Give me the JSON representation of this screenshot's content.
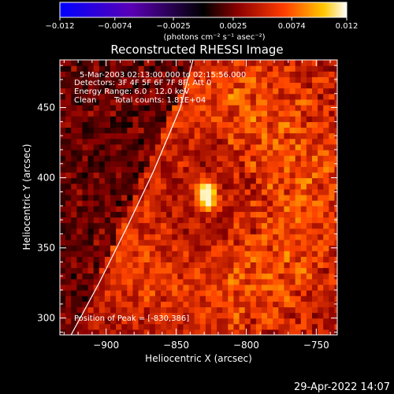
{
  "chart_data": {
    "type": "heatmap",
    "title": "Reconstructed RHESSI Image",
    "xlabel": "Heliocentric X (arcsec)",
    "ylabel": "Heliocentric Y (arcsec)",
    "xlim": [
      -933,
      -735
    ],
    "ylim": [
      288,
      484
    ],
    "xticks": [
      -900,
      -850,
      -800,
      -750
    ],
    "xtick_labels": [
      "−900",
      "−850",
      "−800",
      "−750"
    ],
    "yticks": [
      300,
      350,
      400,
      450
    ],
    "ytick_labels": [
      "300",
      "350",
      "400",
      "450"
    ],
    "colorbar": {
      "min": -0.012,
      "max": 0.012,
      "ticks": [
        -0.012,
        -0.0074,
        -0.0025,
        0.0025,
        0.0074,
        0.012
      ],
      "tick_labels": [
        "−0.012",
        "−0.0074",
        "−0.0025",
        "0.0025",
        "0.0074",
        "0.012"
      ],
      "units_label": "(photons cm⁻² s⁻¹ asec⁻²)",
      "colors": [
        "#0000ff",
        "#6a00c8",
        "#000000",
        "#8b0000",
        "#ff4500",
        "#ffd000",
        "#ffffff"
      ]
    },
    "annotations": {
      "time_range": "5-Mar-2003 02:13:00.000 to 02:15:56.000",
      "detectors": "Detectors: 3F 4F 5F 6F 7F 8F, Att 0",
      "energy": "Energy Range: 6.0 - 12.0 keV",
      "method": "Clean",
      "counts": "Total counts: 1.81E+04",
      "peak": "Position of Peak = [-830,386]"
    },
    "peak_position": [
      -830,
      386
    ],
    "limb_curve": [
      [
        -925,
        288
      ],
      [
        -905,
        325
      ],
      [
        -885,
        365
      ],
      [
        -866,
        405
      ],
      [
        -847,
        450
      ],
      [
        -838,
        484
      ]
    ]
  },
  "footer": {
    "timestamp": "29-Apr-2022 14:07"
  }
}
